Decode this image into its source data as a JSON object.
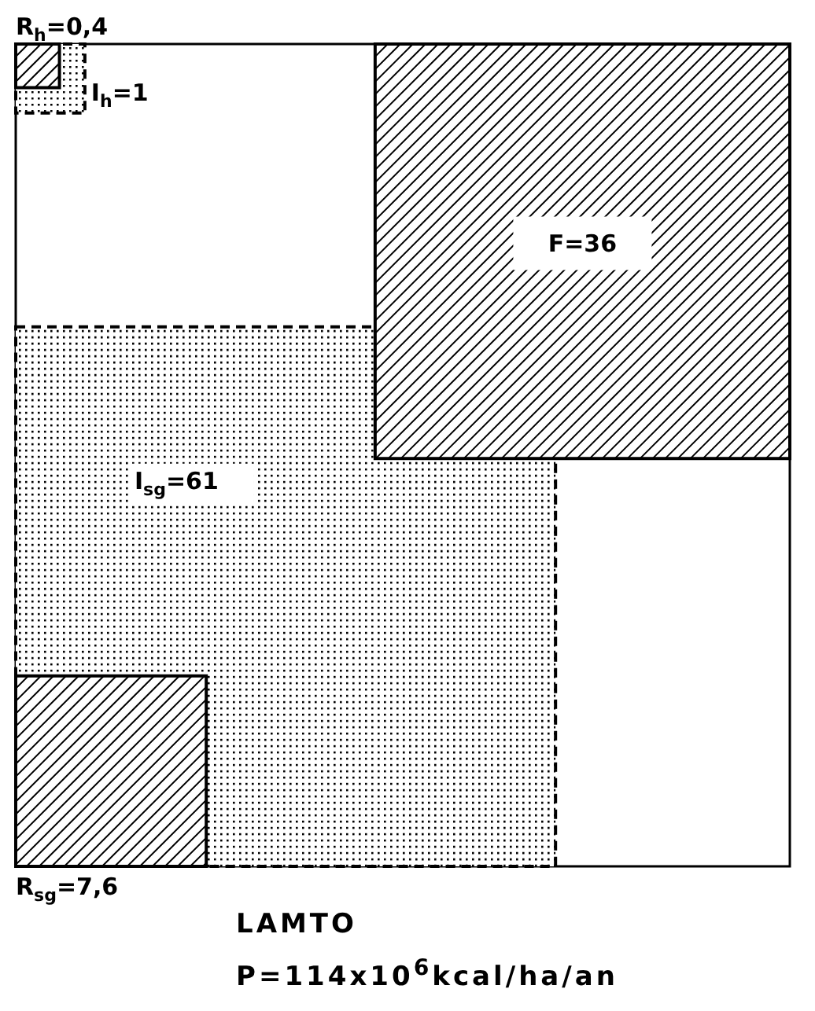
{
  "chart_data": {
    "type": "other",
    "categories": [
      "R$_{h}$",
      "I$_{h}$",
      "F",
      "I$_{sg}$",
      "R$_{sg}$"
    ],
    "values": [
      0.4,
      1,
      36,
      61,
      7.6
    ],
    "value_labels": [
      "=0,4",
      "=1",
      "=36",
      "=61",
      "=7,6"
    ],
    "annotations": [
      "LAMTO",
      "P=114x10$^{6}$kcal/ha/an"
    ]
  }
}
